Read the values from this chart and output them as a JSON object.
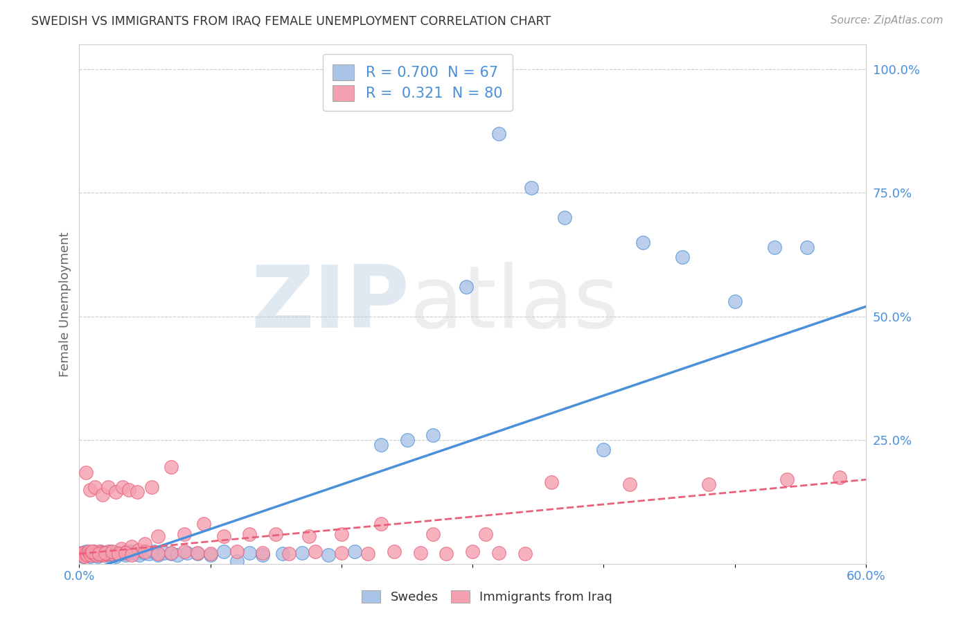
{
  "title": "SWEDISH VS IMMIGRANTS FROM IRAQ FEMALE UNEMPLOYMENT CORRELATION CHART",
  "source": "Source: ZipAtlas.com",
  "ylabel": "Female Unemployment",
  "xlim": [
    0.0,
    0.6
  ],
  "ylim": [
    0.0,
    1.05
  ],
  "xticks": [
    0.0,
    0.1,
    0.2,
    0.3,
    0.4,
    0.5,
    0.6
  ],
  "xtick_labels": [
    "0.0%",
    "",
    "",
    "",
    "",
    "",
    "60.0%"
  ],
  "ytick_labels_right": [
    "100.0%",
    "75.0%",
    "50.0%",
    "25.0%"
  ],
  "ytick_vals_right": [
    1.0,
    0.75,
    0.5,
    0.25
  ],
  "grid_color": "#cccccc",
  "background_color": "#ffffff",
  "watermark": "ZIPatlas",
  "legend_r1": "R = 0.700  N = 67",
  "legend_r2": "R =  0.321  N = 80",
  "swedes_color": "#aac4e8",
  "iraq_color": "#f4a0b0",
  "swedes_line_color": "#4a90d9",
  "iraq_line_color": "#e8607a",
  "swedes_scatter_x": [
    0.001,
    0.002,
    0.003,
    0.004,
    0.005,
    0.006,
    0.007,
    0.008,
    0.009,
    0.01,
    0.011,
    0.012,
    0.013,
    0.014,
    0.015,
    0.016,
    0.017,
    0.018,
    0.019,
    0.02,
    0.021,
    0.022,
    0.023,
    0.024,
    0.025,
    0.026,
    0.027,
    0.028,
    0.029,
    0.03,
    0.032,
    0.035,
    0.038,
    0.04,
    0.043,
    0.046,
    0.05,
    0.053,
    0.057,
    0.06,
    0.065,
    0.07,
    0.075,
    0.082,
    0.09,
    0.1,
    0.11,
    0.12,
    0.13,
    0.14,
    0.155,
    0.17,
    0.19,
    0.21,
    0.23,
    0.25,
    0.27,
    0.295,
    0.32,
    0.345,
    0.37,
    0.4,
    0.43,
    0.46,
    0.5,
    0.53,
    0.555
  ],
  "swedes_scatter_y": [
    0.018,
    0.022,
    0.015,
    0.02,
    0.025,
    0.018,
    0.02,
    0.015,
    0.022,
    0.02,
    0.025,
    0.018,
    0.022,
    0.015,
    0.02,
    0.025,
    0.018,
    0.022,
    0.02,
    0.018,
    0.022,
    0.02,
    0.018,
    0.025,
    0.02,
    0.018,
    0.022,
    0.015,
    0.02,
    0.022,
    0.02,
    0.018,
    0.022,
    0.025,
    0.02,
    0.018,
    0.022,
    0.02,
    0.025,
    0.018,
    0.022,
    0.02,
    0.018,
    0.022,
    0.02,
    0.018,
    0.025,
    0.005,
    0.022,
    0.018,
    0.02,
    0.022,
    0.018,
    0.025,
    0.24,
    0.25,
    0.26,
    0.56,
    0.87,
    0.76,
    0.7,
    0.23,
    0.65,
    0.62,
    0.53,
    0.64,
    0.64
  ],
  "iraq_scatter_x": [
    0.001,
    0.002,
    0.003,
    0.004,
    0.005,
    0.006,
    0.007,
    0.008,
    0.009,
    0.01,
    0.011,
    0.012,
    0.013,
    0.014,
    0.015,
    0.016,
    0.017,
    0.018,
    0.019,
    0.02,
    0.022,
    0.025,
    0.028,
    0.032,
    0.036,
    0.04,
    0.045,
    0.05,
    0.06,
    0.07,
    0.08,
    0.095,
    0.11,
    0.13,
    0.15,
    0.175,
    0.2,
    0.23,
    0.27,
    0.31,
    0.36,
    0.42,
    0.48,
    0.54,
    0.58,
    0.01,
    0.015,
    0.02,
    0.025,
    0.03,
    0.035,
    0.04,
    0.05,
    0.06,
    0.07,
    0.08,
    0.09,
    0.1,
    0.12,
    0.14,
    0.16,
    0.18,
    0.2,
    0.22,
    0.24,
    0.26,
    0.28,
    0.3,
    0.32,
    0.34,
    0.005,
    0.008,
    0.012,
    0.018,
    0.022,
    0.028,
    0.033,
    0.038,
    0.044,
    0.055
  ],
  "iraq_scatter_y": [
    0.02,
    0.018,
    0.022,
    0.015,
    0.02,
    0.018,
    0.025,
    0.02,
    0.018,
    0.022,
    0.025,
    0.02,
    0.018,
    0.022,
    0.025,
    0.018,
    0.02,
    0.022,
    0.018,
    0.02,
    0.025,
    0.02,
    0.022,
    0.03,
    0.025,
    0.035,
    0.028,
    0.04,
    0.055,
    0.195,
    0.06,
    0.08,
    0.055,
    0.06,
    0.06,
    0.055,
    0.06,
    0.08,
    0.06,
    0.06,
    0.165,
    0.16,
    0.16,
    0.17,
    0.175,
    0.025,
    0.02,
    0.022,
    0.025,
    0.02,
    0.022,
    0.018,
    0.025,
    0.02,
    0.022,
    0.025,
    0.022,
    0.02,
    0.025,
    0.022,
    0.02,
    0.025,
    0.022,
    0.02,
    0.025,
    0.022,
    0.02,
    0.025,
    0.022,
    0.02,
    0.185,
    0.15,
    0.155,
    0.14,
    0.155,
    0.145,
    0.155,
    0.15,
    0.145,
    0.155
  ],
  "swedes_trendline_x": [
    0.0,
    0.6
  ],
  "swedes_trendline_y": [
    -0.02,
    0.52
  ],
  "iraq_trendline_x": [
    0.0,
    0.6
  ],
  "iraq_trendline_y": [
    0.02,
    0.17
  ]
}
